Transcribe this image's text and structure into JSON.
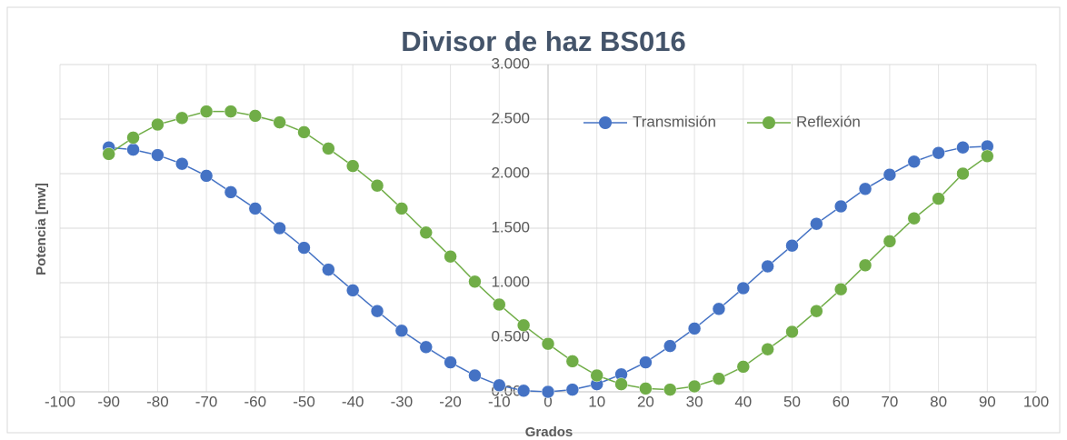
{
  "chart_data": {
    "type": "line",
    "title": "Divisor de haz BS016",
    "x_label": "Grados",
    "y_label": "Potencia [mw]",
    "x": [
      -90,
      -85,
      -80,
      -75,
      -70,
      -65,
      -60,
      -55,
      -50,
      -45,
      -40,
      -35,
      -30,
      -25,
      -20,
      -15,
      -10,
      -5,
      0,
      5,
      10,
      15,
      20,
      25,
      30,
      35,
      40,
      45,
      50,
      55,
      60,
      65,
      70,
      75,
      80,
      85,
      90
    ],
    "series": [
      {
        "name": "Transmisión",
        "color": "#4472c4",
        "values": [
          2.24,
          2.22,
          2.17,
          2.09,
          1.98,
          1.83,
          1.68,
          1.5,
          1.32,
          1.12,
          0.93,
          0.74,
          0.56,
          0.41,
          0.27,
          0.15,
          0.06,
          0.01,
          0.0,
          0.02,
          0.07,
          0.16,
          0.27,
          0.42,
          0.58,
          0.76,
          0.95,
          1.15,
          1.34,
          1.54,
          1.7,
          1.86,
          1.99,
          2.11,
          2.19,
          2.24,
          2.25
        ]
      },
      {
        "name": "Reflexión",
        "color": "#70ad47",
        "values": [
          2.18,
          2.33,
          2.45,
          2.51,
          2.57,
          2.57,
          2.53,
          2.47,
          2.38,
          2.23,
          2.07,
          1.89,
          1.68,
          1.46,
          1.24,
          1.01,
          0.8,
          0.61,
          0.44,
          0.28,
          0.15,
          0.07,
          0.03,
          0.02,
          0.05,
          0.12,
          0.23,
          0.39,
          0.55,
          0.74,
          0.94,
          1.16,
          1.38,
          1.59,
          1.77,
          2.0,
          2.16
        ]
      }
    ],
    "xlim": [
      -100,
      100
    ],
    "xticks": [
      -100,
      -90,
      -80,
      -70,
      -60,
      -50,
      -40,
      -30,
      -20,
      -10,
      0,
      10,
      20,
      30,
      40,
      50,
      60,
      70,
      80,
      90,
      100
    ],
    "ylim": [
      0,
      3
    ],
    "yticks": [
      {
        "value": 0,
        "label": "0.000"
      },
      {
        "value": 0.5,
        "label": "0.500"
      },
      {
        "value": 1,
        "label": "1.000"
      },
      {
        "value": 1.5,
        "label": "1.500"
      },
      {
        "value": 2,
        "label": "2.000"
      },
      {
        "value": 2.5,
        "label": "2.500"
      },
      {
        "value": 3,
        "label": "3.000"
      }
    ],
    "grid": true
  }
}
